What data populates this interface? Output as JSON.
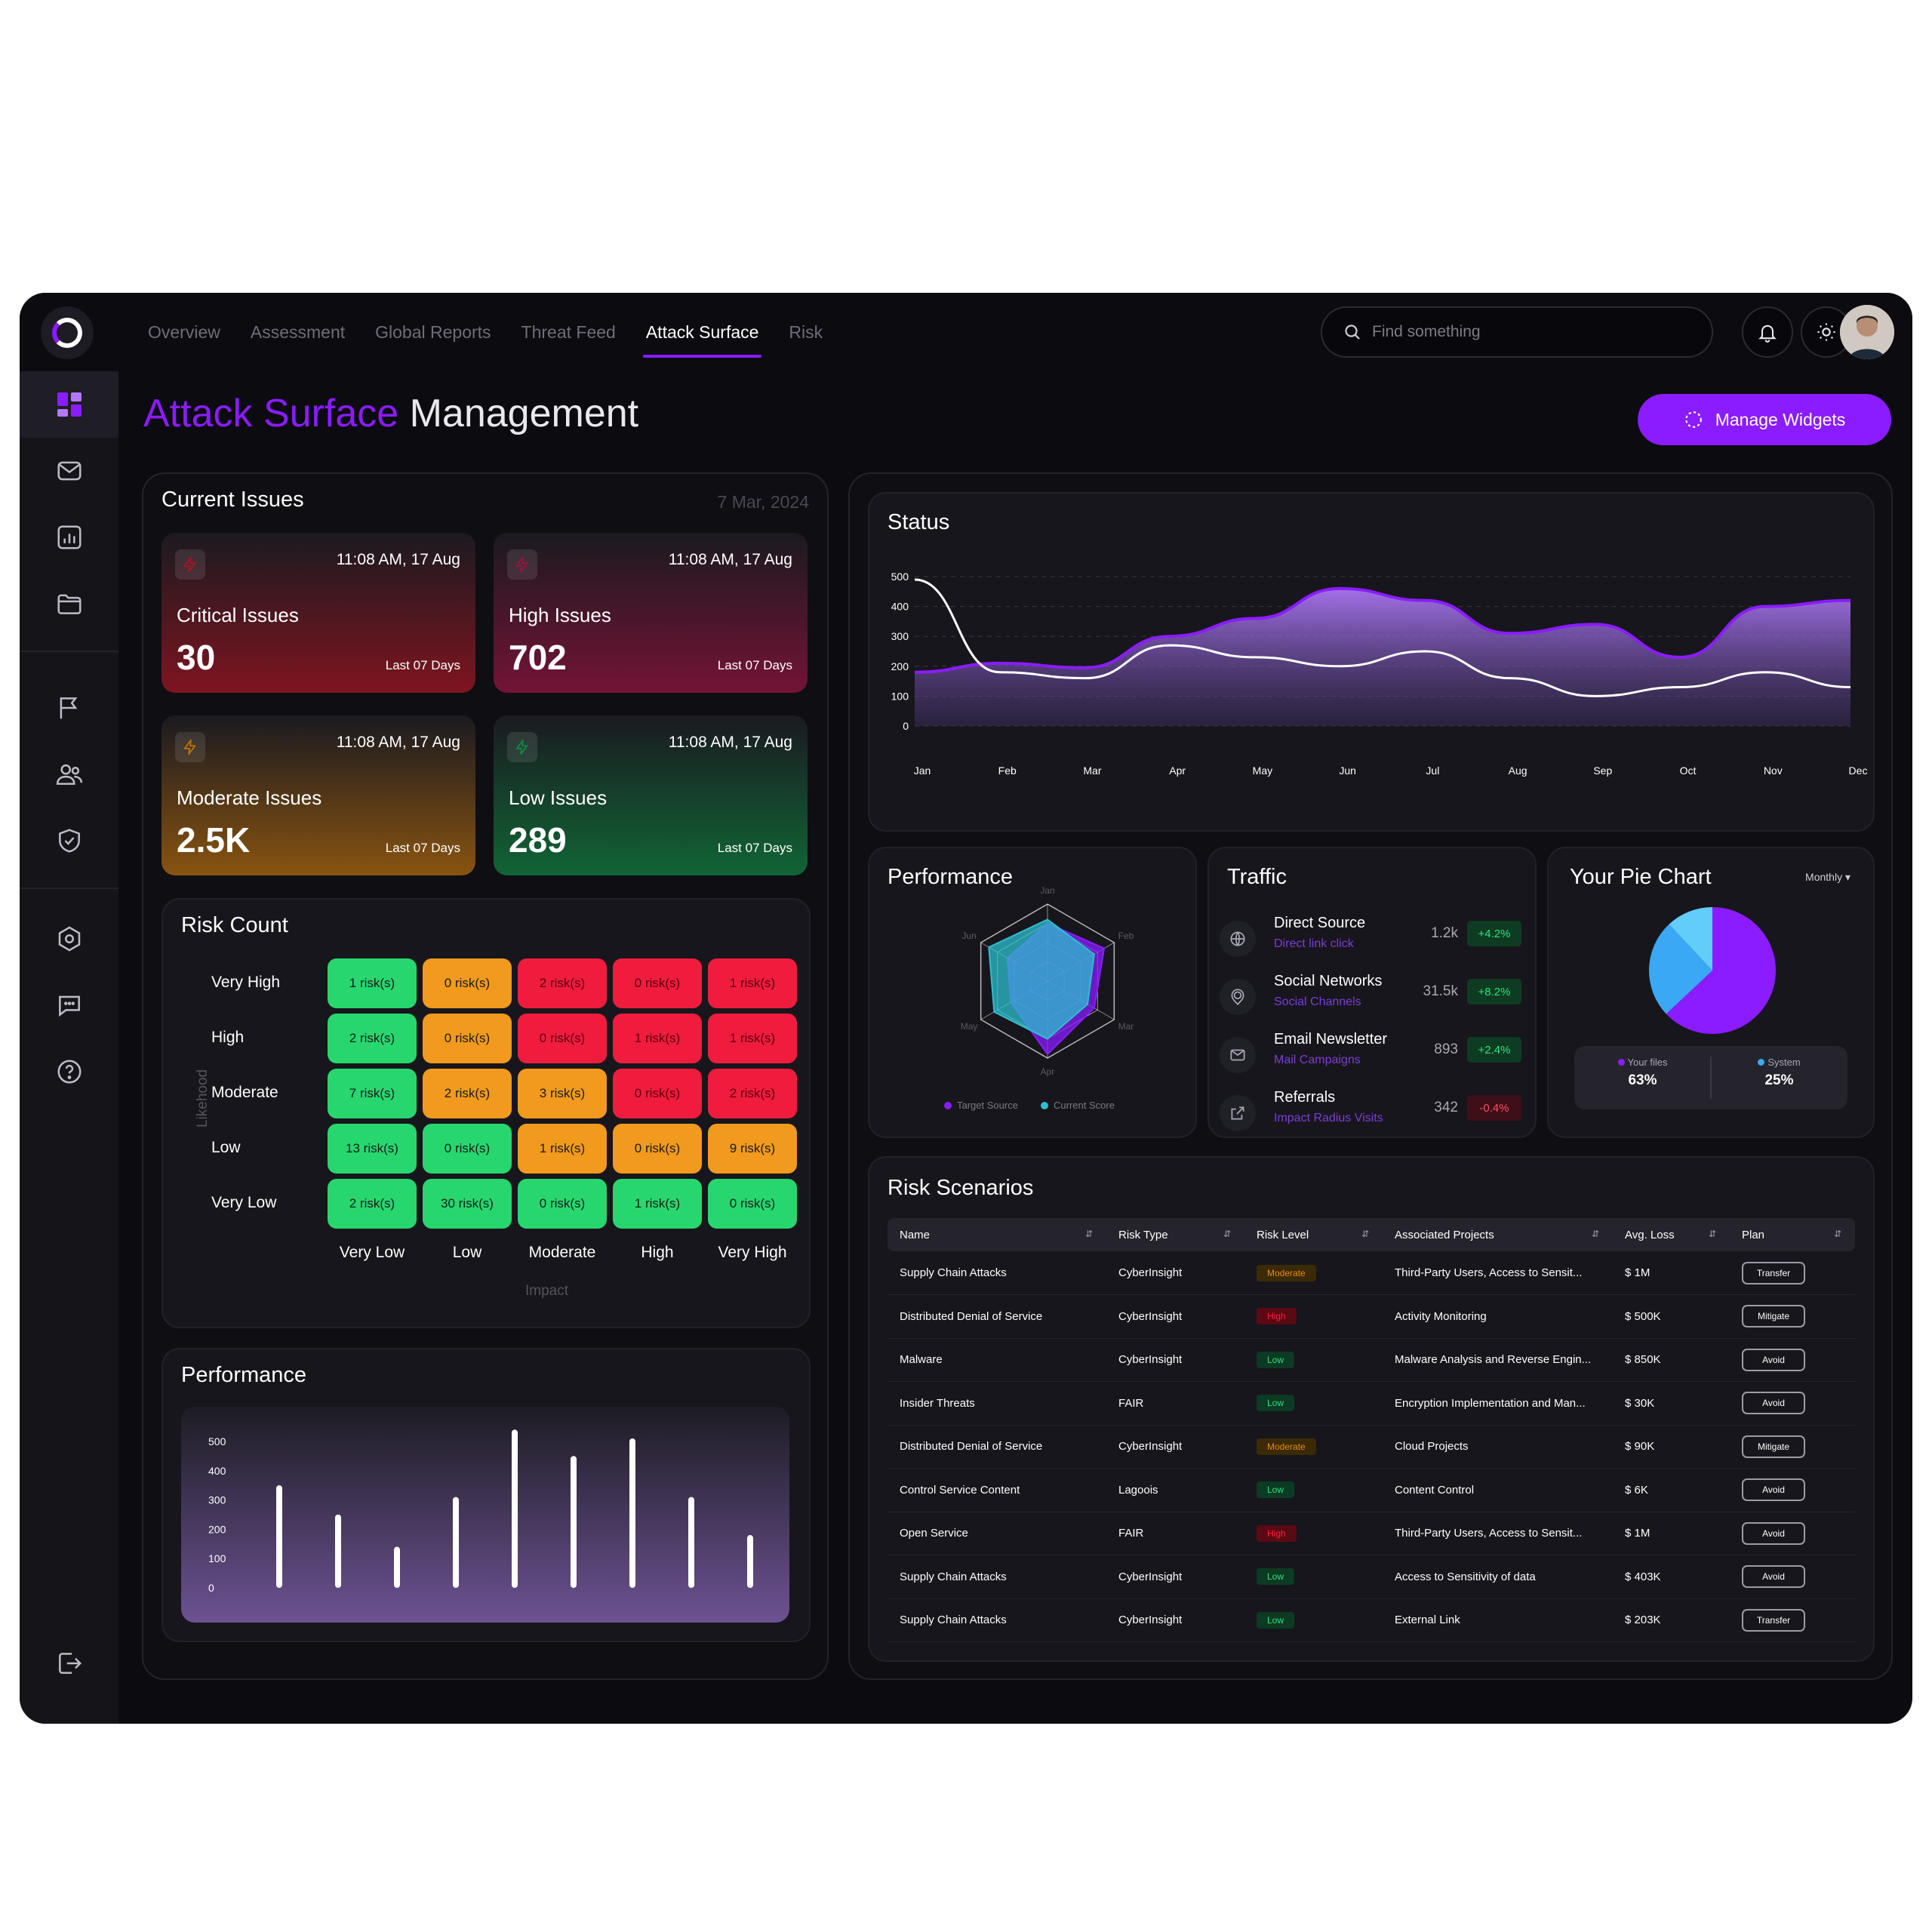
{
  "nav": {
    "tabs": [
      {
        "label": "Overview"
      },
      {
        "label": "Assessment"
      },
      {
        "label": "Global Reports"
      },
      {
        "label": "Threat Feed"
      },
      {
        "label": "Attack Surface"
      },
      {
        "label": "Risk"
      }
    ],
    "active_tab": "Attack Surface",
    "search_placeholder": "Find something"
  },
  "sidebar": {
    "items": [
      {
        "icon": "dashboard-icon",
        "active": true
      },
      {
        "icon": "mail-icon"
      },
      {
        "icon": "analytics-icon"
      },
      {
        "icon": "folder-icon"
      },
      {
        "icon": "flag-icon"
      },
      {
        "icon": "users-icon"
      },
      {
        "icon": "shield-check-icon"
      },
      {
        "icon": "settings-icon"
      },
      {
        "icon": "chat-icon"
      },
      {
        "icon": "help-icon"
      },
      {
        "icon": "logout-icon"
      }
    ]
  },
  "page": {
    "title_accent": "Attack Surface",
    "title_rest": " Management",
    "manage_widgets": "Manage Widgets",
    "accent_color": "#8a1cff"
  },
  "current_issues": {
    "title": "Current Issues",
    "date": "7 Mar, 2024",
    "cards": [
      {
        "label": "Critical Issues",
        "value": "30",
        "time": "11:08 AM, 17 Aug",
        "period": "Last 07 Days",
        "color": "#b0121f"
      },
      {
        "label": "High Issues",
        "value": "702",
        "time": "11:08 AM, 17 Aug",
        "period": "Last 07 Days",
        "color": "#a01040"
      },
      {
        "label": "Moderate Issues",
        "value": "2.5K",
        "time": "11:08 AM, 17 Aug",
        "period": "Last 07 Days",
        "color": "#c07008"
      },
      {
        "label": "Low Issues",
        "value": "289",
        "time": "11:08 AM, 17 Aug",
        "period": "Last 07 Days",
        "color": "#0c8a40"
      }
    ]
  },
  "risk_count": {
    "title": "Risk Count",
    "y_axis": "Likehood",
    "x_axis": "Impact",
    "rows": [
      {
        "label": "Very High",
        "cells": [
          "1 risk(s)",
          "0 risk(s)",
          "2 risk(s)",
          "0 risk(s)",
          "1 risk(s)"
        ],
        "colors": [
          "green",
          "orange",
          "red",
          "red",
          "red"
        ]
      },
      {
        "label": "High",
        "cells": [
          "2 risk(s)",
          "0 risk(s)",
          "0 risk(s)",
          "1 risk(s)",
          "1 risk(s)"
        ],
        "colors": [
          "green",
          "orange",
          "red",
          "red",
          "red"
        ]
      },
      {
        "label": "Moderate",
        "cells": [
          "7 risk(s)",
          "2 risk(s)",
          "3 risk(s)",
          "0 risk(s)",
          "2 risk(s)"
        ],
        "colors": [
          "green",
          "orange",
          "orange",
          "red",
          "red"
        ]
      },
      {
        "label": "Low",
        "cells": [
          "13 risk(s)",
          "0 risk(s)",
          "1 risk(s)",
          "0 risk(s)",
          "9 risk(s)"
        ],
        "colors": [
          "green",
          "green",
          "orange",
          "orange",
          "orange"
        ]
      },
      {
        "label": "Very Low",
        "cells": [
          "2 risk(s)",
          "30 risk(s)",
          "0 risk(s)",
          "1 risk(s)",
          "0 risk(s)"
        ],
        "colors": [
          "green",
          "green",
          "green",
          "green",
          "green"
        ]
      }
    ],
    "columns": [
      "Very Low",
      "Low",
      "Moderate",
      "High",
      "Very High"
    ]
  },
  "status": {
    "title": "Status"
  },
  "performance_radar": {
    "title": "Performance",
    "axes": [
      "Jan",
      "Feb",
      "Mar",
      "Apr",
      "May",
      "Jun"
    ]
  },
  "traffic": {
    "title": "Traffic",
    "rows": [
      {
        "name": "Direct Source",
        "sub": "Direct link click",
        "value": "1.2k",
        "change": "+4.2%",
        "dir": "up",
        "icon": "globe-icon"
      },
      {
        "name": "Social Networks",
        "sub": "Social Channels",
        "value": "31.5k",
        "change": "+8.2%",
        "dir": "up",
        "icon": "location-icon"
      },
      {
        "name": "Email Newsletter",
        "sub": "Mail Campaigns",
        "value": "893",
        "change": "+2.4%",
        "dir": "up",
        "icon": "mail-icon"
      },
      {
        "name": "Referrals",
        "sub": "Impact Radius Visits",
        "value": "342",
        "change": "-0.4%",
        "dir": "down",
        "icon": "external-link-icon"
      }
    ]
  },
  "pie": {
    "title": "Your Pie Chart",
    "period": "Monthly",
    "legend": [
      {
        "label": "Your files",
        "value": "63%",
        "color": "#8a1cff"
      },
      {
        "label": "System",
        "value": "25%",
        "color": "#3aa8f5"
      }
    ]
  },
  "risk_scenarios": {
    "title": "Risk Scenarios",
    "columns": [
      "Name",
      "Risk Type",
      "Risk Level",
      "Associated Projects",
      "Avg. Loss",
      "Plan"
    ],
    "rows": [
      [
        "Supply Chain Attacks",
        "CyberInsight",
        "Moderate",
        "Third-Party Users, Access to Sensit...",
        "$ 1M",
        "Transfer"
      ],
      [
        "Distributed Denial of Service",
        "CyberInsight",
        "High",
        "Activity Monitoring",
        "$ 500K",
        "Mitigate"
      ],
      [
        "Malware",
        "CyberInsight",
        "Low",
        "Malware Analysis and Reverse Engin...",
        "$ 850K",
        "Avoid"
      ],
      [
        "Insider Threats",
        "FAIR",
        "Low",
        "Encryption Implementation and Man...",
        "$ 30K",
        "Avoid"
      ],
      [
        "Distributed Denial of Service",
        "CyberInsight",
        "Moderate",
        "Cloud Projects",
        "$ 90K",
        "Mitigate"
      ],
      [
        "Control Service Content",
        "Lagoois",
        "Low",
        "Content Control",
        "$ 6K",
        "Avoid"
      ],
      [
        "Open Service",
        "FAIR",
        "High",
        "Third-Party Users, Access to Sensit...",
        "$ 1M",
        "Avoid"
      ],
      [
        "Supply Chain Attacks",
        "CyberInsight",
        "Low",
        "Access to Sensitivity of data",
        "$ 403K",
        "Avoid"
      ],
      [
        "Supply Chain Attacks",
        "CyberInsight",
        "Low",
        "External Link",
        "$ 203K",
        "Transfer"
      ]
    ]
  },
  "performance_bars": {
    "title": "Performance"
  },
  "chart_data": [
    {
      "type": "area",
      "title": "Status",
      "categories": [
        "Jan",
        "Feb",
        "Mar",
        "Apr",
        "May",
        "Jun",
        "Jul",
        "Aug",
        "Sep",
        "Oct",
        "Nov",
        "Dec"
      ],
      "ylim": [
        0,
        500
      ],
      "yticks": [
        0,
        100,
        200,
        300,
        400,
        500
      ],
      "series": [
        {
          "values": [
            180,
            210,
            195,
            300,
            360,
            460,
            420,
            310,
            340,
            230,
            400,
            420
          ],
          "color": "#8a1cff"
        },
        {
          "values": [
            490,
            180,
            160,
            270,
            230,
            200,
            250,
            160,
            100,
            130,
            180,
            130
          ],
          "color": "#ffffff"
        }
      ]
    },
    {
      "type": "radar",
      "title": "Performance",
      "axes": [
        "Jan",
        "Feb",
        "Mar",
        "Apr",
        "May",
        "Jun"
      ],
      "rmax": 100,
      "series": [
        {
          "name": "Target Source",
          "values": [
            75,
            85,
            70,
            95,
            55,
            60
          ],
          "color": "#8a1cff"
        },
        {
          "name": "Current Score",
          "values": [
            80,
            70,
            60,
            75,
            80,
            88
          ],
          "color": "#2dbfcf"
        }
      ]
    },
    {
      "type": "pie",
      "title": "Your Pie Chart",
      "slices": [
        {
          "label": "Your files",
          "value": 63,
          "color": "#8a1cff"
        },
        {
          "label": "System",
          "value": 25,
          "color": "#3aa8f5"
        },
        {
          "label": "",
          "value": 12,
          "color": "#62cdf9"
        }
      ]
    },
    {
      "type": "bar",
      "title": "Performance",
      "ylim": [
        0,
        500
      ],
      "yticks": [
        0,
        100,
        200,
        300,
        400,
        500
      ],
      "values": [
        340,
        240,
        130,
        300,
        530,
        440,
        500,
        300,
        170
      ]
    }
  ]
}
